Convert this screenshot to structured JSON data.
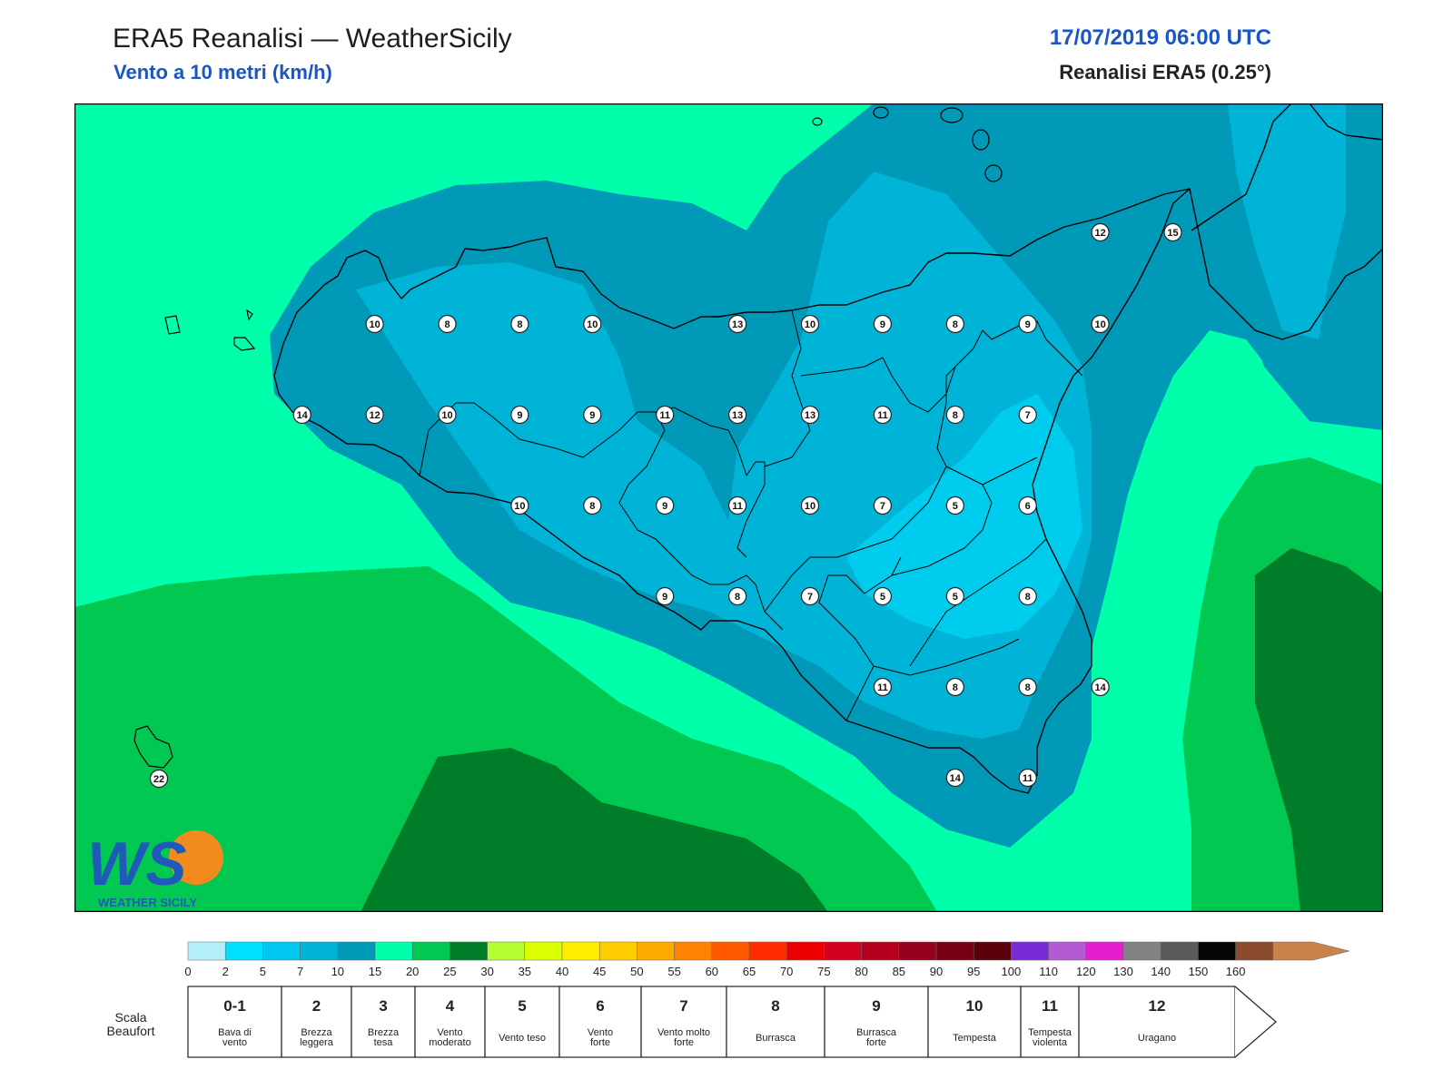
{
  "header": {
    "title": "ERA5 Reanalisi — WeatherSicily",
    "subtitle": "Vento a 10 metri (km/h)",
    "datetime": "17/07/2019 06:00 UTC",
    "source": "Reanalisi ERA5 (0.25°)"
  },
  "logo": {
    "text": "WEATHER SICILY",
    "mark": "WS"
  },
  "colors": {
    "sea_light": "#00ffaa",
    "band_10_15": "#0099b8",
    "band_7_10": "#00b4d8",
    "band_5_7": "#00ccee",
    "band_20_25": "#00c850",
    "band_25_30": "#007d28",
    "coast": "#000000"
  },
  "stations": [
    {
      "v": "10",
      "col": 4,
      "row": 0
    },
    {
      "v": "8",
      "col": 5,
      "row": 0
    },
    {
      "v": "8",
      "col": 6,
      "row": 0
    },
    {
      "v": "10",
      "col": 7,
      "row": 0
    },
    {
      "v": "13",
      "col": 9,
      "row": 0
    },
    {
      "v": "10",
      "col": 10,
      "row": 0
    },
    {
      "v": "9",
      "col": 11,
      "row": 0
    },
    {
      "v": "8",
      "col": 12,
      "row": 0
    },
    {
      "v": "9",
      "col": 13,
      "row": 0
    },
    {
      "v": "10",
      "col": 14,
      "row": 0
    },
    {
      "v": "14",
      "col": 3,
      "row": 1
    },
    {
      "v": "12",
      "col": 4,
      "row": 1
    },
    {
      "v": "10",
      "col": 5,
      "row": 1
    },
    {
      "v": "9",
      "col": 6,
      "row": 1
    },
    {
      "v": "9",
      "col": 7,
      "row": 1
    },
    {
      "v": "11",
      "col": 8,
      "row": 1
    },
    {
      "v": "13",
      "col": 9,
      "row": 1
    },
    {
      "v": "13",
      "col": 10,
      "row": 1
    },
    {
      "v": "11",
      "col": 11,
      "row": 1
    },
    {
      "v": "8",
      "col": 12,
      "row": 1
    },
    {
      "v": "7",
      "col": 13,
      "row": 1
    },
    {
      "v": "10",
      "col": 6,
      "row": 2
    },
    {
      "v": "8",
      "col": 7,
      "row": 2
    },
    {
      "v": "9",
      "col": 8,
      "row": 2
    },
    {
      "v": "11",
      "col": 9,
      "row": 2
    },
    {
      "v": "10",
      "col": 10,
      "row": 2
    },
    {
      "v": "7",
      "col": 11,
      "row": 2
    },
    {
      "v": "5",
      "col": 12,
      "row": 2
    },
    {
      "v": "6",
      "col": 13,
      "row": 2
    },
    {
      "v": "9",
      "col": 8,
      "row": 3
    },
    {
      "v": "8",
      "col": 9,
      "row": 3
    },
    {
      "v": "7",
      "col": 10,
      "row": 3
    },
    {
      "v": "5",
      "col": 11,
      "row": 3
    },
    {
      "v": "5",
      "col": 12,
      "row": 3
    },
    {
      "v": "8",
      "col": 13,
      "row": 3
    },
    {
      "v": "11",
      "col": 11,
      "row": 4
    },
    {
      "v": "8",
      "col": 12,
      "row": 4
    },
    {
      "v": "8",
      "col": 13,
      "row": 4
    },
    {
      "v": "14",
      "col": 14,
      "row": 4
    },
    {
      "v": "14",
      "col": 12,
      "row": 5
    },
    {
      "v": "11",
      "col": 13,
      "row": 5
    },
    {
      "v": "12",
      "col": 14,
      "row": -1
    },
    {
      "v": "15",
      "col": 15,
      "row": -1
    },
    {
      "v": "22",
      "col": 1,
      "row": 5
    }
  ],
  "colorbar": {
    "ticks": [
      "0",
      "2",
      "5",
      "7",
      "10",
      "15",
      "20",
      "25",
      "30",
      "35",
      "40",
      "45",
      "50",
      "55",
      "60",
      "65",
      "70",
      "75",
      "80",
      "85",
      "90",
      "95",
      "100",
      "110",
      "120",
      "130",
      "140",
      "150",
      "160"
    ],
    "colors": [
      "#b4f0fa",
      "#00e1ff",
      "#00c8f0",
      "#00b4d8",
      "#0099b8",
      "#00ffaa",
      "#00c850",
      "#007d28",
      "#b4ff32",
      "#dcff00",
      "#ffee00",
      "#ffcc00",
      "#ffaa00",
      "#ff8200",
      "#ff5a00",
      "#ff2d00",
      "#eb0000",
      "#d2001e",
      "#b4001e",
      "#96001e",
      "#780014",
      "#5a000a",
      "#7a2bd6",
      "#b45ad2",
      "#e61ed2",
      "#828282",
      "#5a5a5a",
      "#050505",
      "#8c4b2d",
      "#c8824b"
    ]
  },
  "beaufort": {
    "title": "Scala Beaufort",
    "cells": [
      {
        "num": "0-1",
        "l1": "Bava di",
        "l2": "vento"
      },
      {
        "num": "2",
        "l1": "Brezza",
        "l2": "leggera"
      },
      {
        "num": "3",
        "l1": "Brezza",
        "l2": "tesa"
      },
      {
        "num": "4",
        "l1": "Vento",
        "l2": "moderato"
      },
      {
        "num": "5",
        "l1": "Vento teso",
        "l2": ""
      },
      {
        "num": "6",
        "l1": "Vento",
        "l2": "forte"
      },
      {
        "num": "7",
        "l1": "Vento molto",
        "l2": "forte"
      },
      {
        "num": "8",
        "l1": "Burrasca",
        "l2": ""
      },
      {
        "num": "9",
        "l1": "Burrasca",
        "l2": "forte"
      },
      {
        "num": "10",
        "l1": "Tempesta",
        "l2": ""
      },
      {
        "num": "11",
        "l1": "Tempesta",
        "l2": "violenta"
      },
      {
        "num": "12",
        "l1": "Uragano",
        "l2": ""
      }
    ]
  }
}
